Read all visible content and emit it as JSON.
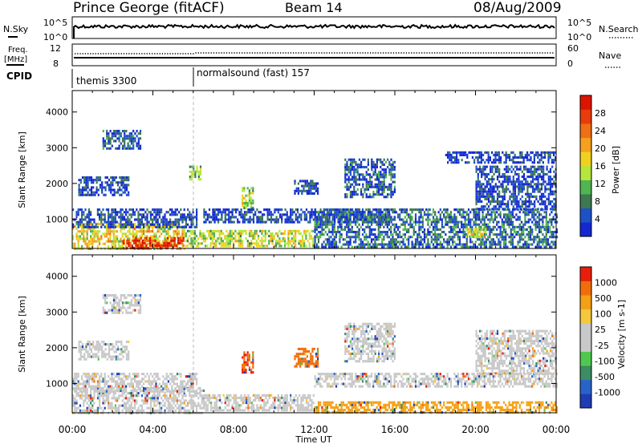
{
  "header": {
    "station": "Prince George (fitACF)",
    "beam": "Beam 14",
    "date": "08/Aug/2009"
  },
  "noise_panel": {
    "left_label": "N.Sky",
    "left_ticks": [
      "10^5",
      "10^0"
    ],
    "right_label": "N.Search",
    "right_ticks": [
      "10^5",
      "10^0"
    ]
  },
  "freq_panel": {
    "left_label_1": "Freq.",
    "left_label_2": "[MHz]",
    "left_ticks": [
      "12",
      "8"
    ],
    "right_label": "Nave",
    "right_ticks": [
      "60",
      "0"
    ]
  },
  "cpid": {
    "label": "CPID",
    "segments": [
      {
        "name": "themis 3300",
        "start_hour": 0
      },
      {
        "name": "normalsound (fast) 157",
        "start_hour": 6
      }
    ]
  },
  "chart_data": [
    {
      "type": "heatmap",
      "panel": "power",
      "ylabel": "Slant Range [km]",
      "xlabel": "",
      "x_ticks": [
        "00:00",
        "04:00",
        "08:00",
        "12:00",
        "16:00",
        "20:00",
        "00:00"
      ],
      "x_range_hours": [
        0,
        24
      ],
      "y_ticks": [
        1000,
        2000,
        3000,
        4000
      ],
      "ylim": [
        180,
        4600
      ],
      "colorbar": {
        "label": "Power [dB]",
        "ticks": [
          "4",
          "8",
          "12",
          "16",
          "20",
          "24",
          "28"
        ],
        "colors": [
          "#1428d2",
          "#1e50c8",
          "#3c7850",
          "#50b450",
          "#b4e63c",
          "#f0d21e",
          "#f5a01e",
          "#f06e14",
          "#e83c0a",
          "#dc1400"
        ]
      },
      "regions": [
        {
          "t0": 0.0,
          "t1": 5.6,
          "r0": 200,
          "r1": 900,
          "level": 0.55
        },
        {
          "t0": 2.5,
          "t1": 5.5,
          "r0": 200,
          "r1": 500,
          "level": 0.9
        },
        {
          "t0": 5.6,
          "t1": 12.0,
          "r0": 250,
          "r1": 700,
          "level": 0.45
        },
        {
          "t0": 0.0,
          "t1": 6.2,
          "r0": 800,
          "r1": 1300,
          "level": 0.12
        },
        {
          "t0": 1.5,
          "t1": 3.4,
          "r0": 3000,
          "r1": 3500,
          "level": 0.15
        },
        {
          "t0": 0.3,
          "t1": 2.8,
          "r0": 1700,
          "r1": 2200,
          "level": 0.12
        },
        {
          "t0": 5.8,
          "t1": 6.4,
          "r0": 2100,
          "r1": 2500,
          "level": 0.35
        },
        {
          "t0": 8.4,
          "t1": 9.0,
          "r0": 1300,
          "r1": 1900,
          "level": 0.45
        },
        {
          "t0": 6.5,
          "t1": 16.0,
          "r0": 900,
          "r1": 1300,
          "level": 0.1
        },
        {
          "t0": 11.0,
          "t1": 12.2,
          "r0": 1700,
          "r1": 2100,
          "level": 0.12
        },
        {
          "t0": 13.5,
          "t1": 16.0,
          "r0": 1600,
          "r1": 2700,
          "level": 0.15
        },
        {
          "t0": 12.0,
          "t1": 24.0,
          "r0": 250,
          "r1": 1300,
          "level": 0.2
        },
        {
          "t0": 19.5,
          "t1": 20.5,
          "r0": 500,
          "r1": 750,
          "level": 0.5
        },
        {
          "t0": 20.0,
          "t1": 24.0,
          "r0": 1300,
          "r1": 2500,
          "level": 0.12
        },
        {
          "t0": 18.5,
          "t1": 24.0,
          "r0": 2600,
          "r1": 2900,
          "level": 0.1
        }
      ]
    },
    {
      "type": "heatmap",
      "panel": "velocity",
      "ylabel": "Slant Range [km]",
      "xlabel": "Time UT",
      "x_ticks": [
        "00:00",
        "04:00",
        "08:00",
        "12:00",
        "16:00",
        "20:00",
        "00:00"
      ],
      "x_range_hours": [
        0,
        24
      ],
      "y_ticks": [
        1000,
        2000,
        3000,
        4000
      ],
      "ylim": [
        180,
        4600
      ],
      "colorbar": {
        "label": "Velocity [m s-1]",
        "ticks": [
          "1000",
          "500",
          "100",
          "25",
          "-25",
          "-100",
          "-500",
          "-1000"
        ],
        "colors": [
          "#1e3cb4",
          "#2864c8",
          "#3c8c64",
          "#50c850",
          "#c8c8c8",
          "#c8c8c8",
          "#f5c83c",
          "#f5a014",
          "#f06e0a",
          "#e81e0a"
        ]
      },
      "regions": [
        {
          "t0": 0.0,
          "t1": 6.5,
          "r0": 200,
          "r1": 900,
          "level": 0.5
        },
        {
          "t0": 6.5,
          "t1": 12.0,
          "r0": 250,
          "r1": 700,
          "level": 0.45
        },
        {
          "t0": 0.0,
          "t1": 6.2,
          "r0": 800,
          "r1": 1300,
          "level": 0.45
        },
        {
          "t0": 1.5,
          "t1": 3.4,
          "r0": 3000,
          "r1": 3500,
          "level": 0.5
        },
        {
          "t0": 0.3,
          "t1": 2.8,
          "r0": 1700,
          "r1": 2200,
          "level": 0.5
        },
        {
          "t0": 8.4,
          "t1": 9.0,
          "r0": 1300,
          "r1": 1900,
          "level": 0.9
        },
        {
          "t0": 11.0,
          "t1": 12.2,
          "r0": 1500,
          "r1": 2000,
          "level": 0.85
        },
        {
          "t0": 13.5,
          "t1": 16.0,
          "r0": 1600,
          "r1": 2700,
          "level": 0.45
        },
        {
          "t0": 12.0,
          "t1": 24.0,
          "r0": 200,
          "r1": 500,
          "level": 0.75
        },
        {
          "t0": 12.0,
          "t1": 24.0,
          "r0": 900,
          "r1": 1300,
          "level": 0.45
        },
        {
          "t0": 20.0,
          "t1": 24.0,
          "r0": 1300,
          "r1": 2500,
          "level": 0.45
        }
      ]
    }
  ]
}
